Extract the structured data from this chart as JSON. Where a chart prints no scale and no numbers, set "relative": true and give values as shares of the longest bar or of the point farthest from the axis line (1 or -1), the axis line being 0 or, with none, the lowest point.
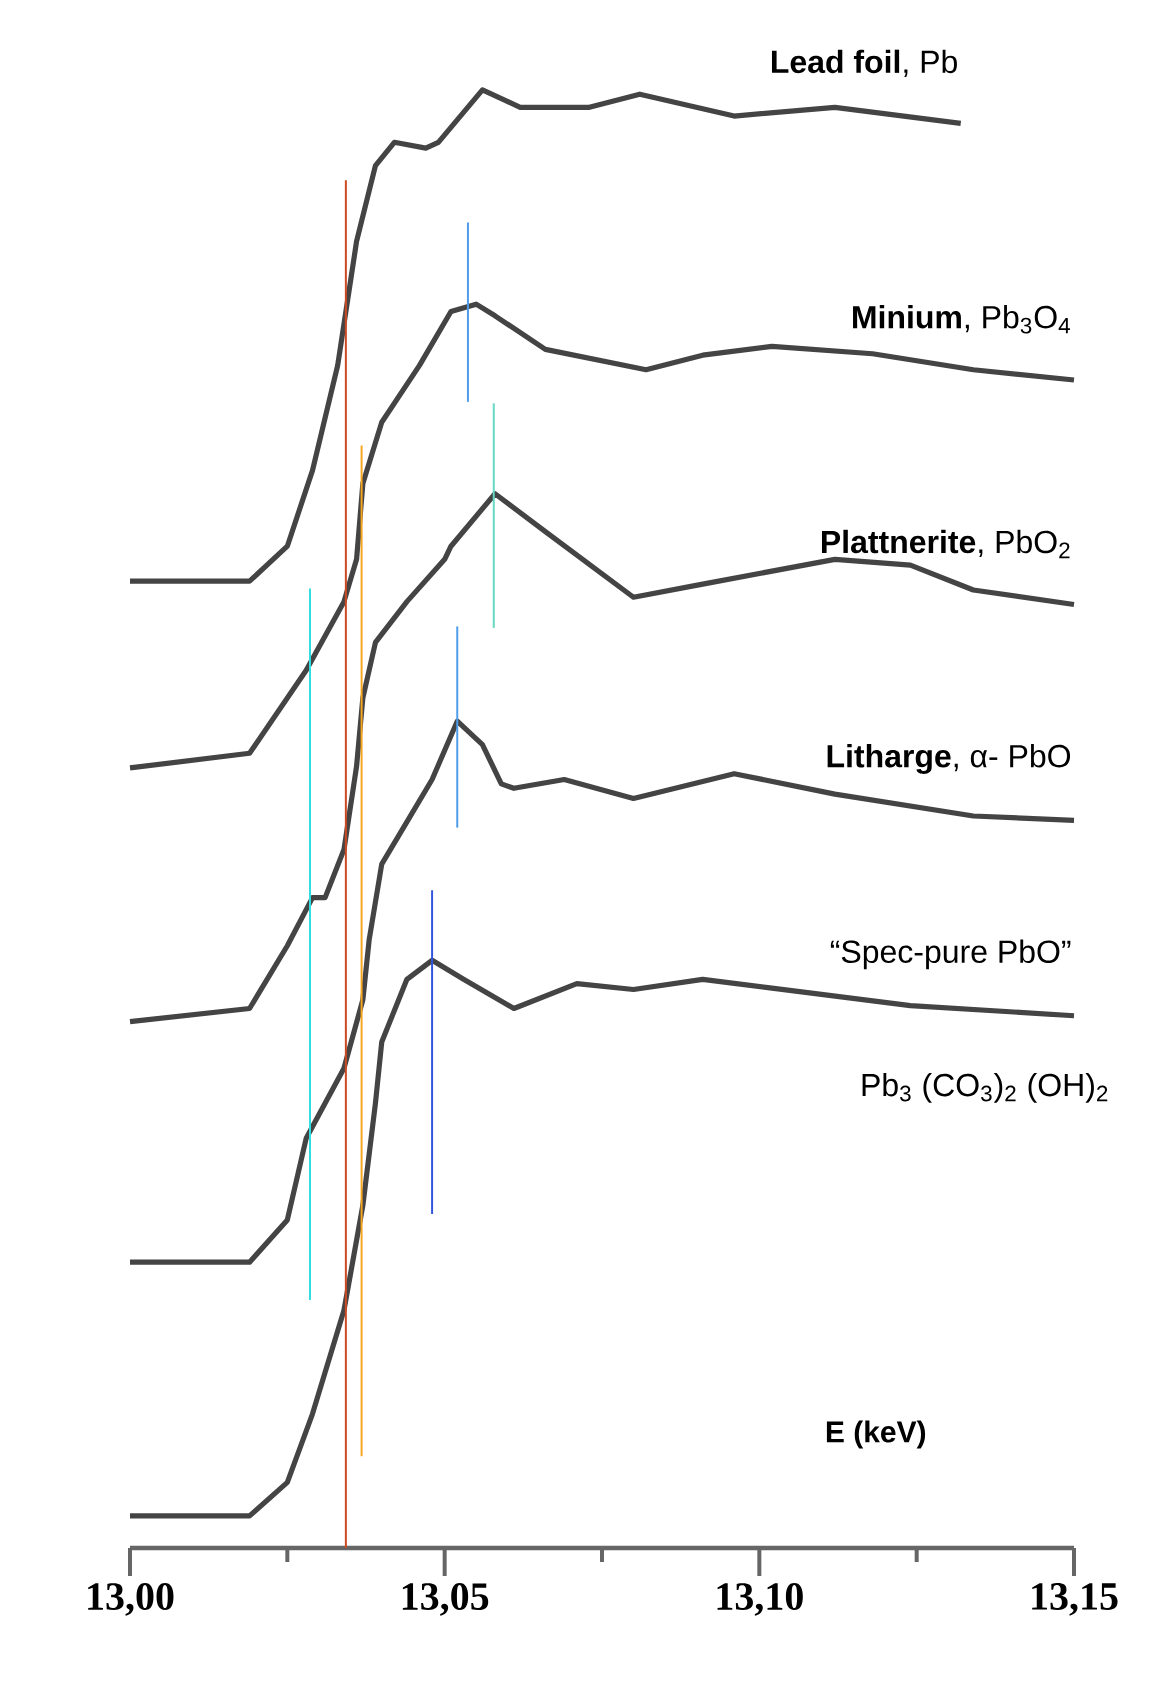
{
  "chart_data": {
    "type": "line",
    "relative": true,
    "xlabel": "E (keV)",
    "xlim": [
      13.0,
      13.15
    ],
    "xticks": [
      {
        "value": 13.0,
        "label": "13,00"
      },
      {
        "value": 13.025,
        "label": null
      },
      {
        "value": 13.05,
        "label": "13,05"
      },
      {
        "value": 13.075,
        "label": null
      },
      {
        "value": 13.1,
        "label": "13,10"
      },
      {
        "value": 13.125,
        "label": null
      },
      {
        "value": 13.15,
        "label": "13,15"
      }
    ],
    "annotations": [
      "Pb$_{3}$ (CO$_{3}$)$_{2}$ (OH)$_{2}$"
    ],
    "series": [
      {
        "name": "**Lead foil**, Pb",
        "color": "#444444",
        "x": [
          13.0,
          13.019,
          13.025,
          13.029,
          13.033,
          13.036,
          13.039,
          13.042,
          13.047,
          13.049,
          13.056,
          13.062,
          13.073,
          13.081,
          13.096,
          13.112,
          13.132
        ],
        "values": [
          0.663,
          0.663,
          0.687,
          0.739,
          0.811,
          0.896,
          0.948,
          0.964,
          0.96,
          0.964,
          1.0,
          0.988,
          0.988,
          0.997,
          0.982,
          0.988,
          0.977
        ]
      },
      {
        "name": "**Minium**, Pb$_{3}$O$_{4}$",
        "color": "#444444",
        "x": [
          13.0,
          13.019,
          13.028,
          13.034,
          13.036,
          13.037,
          13.04,
          13.046,
          13.051,
          13.055,
          13.058,
          13.066,
          13.082,
          13.091,
          13.102,
          13.118,
          13.134,
          13.15
        ],
        "values": [
          0.535,
          0.545,
          0.602,
          0.649,
          0.678,
          0.73,
          0.772,
          0.811,
          0.848,
          0.853,
          0.845,
          0.822,
          0.808,
          0.818,
          0.824,
          0.819,
          0.808,
          0.801
        ]
      },
      {
        "name": "**Plattnerite**, PbO$_{2}$",
        "color": "#444444",
        "x": [
          13.0,
          13.019,
          13.025,
          13.029,
          13.031,
          13.034,
          13.036,
          13.037,
          13.039,
          13.044,
          13.05,
          13.051,
          13.058,
          13.066,
          13.08,
          13.091,
          13.112,
          13.124,
          13.134,
          13.15
        ],
        "values": [
          0.361,
          0.37,
          0.413,
          0.446,
          0.446,
          0.479,
          0.536,
          0.583,
          0.621,
          0.649,
          0.678,
          0.687,
          0.723,
          0.697,
          0.652,
          0.661,
          0.678,
          0.674,
          0.657,
          0.647
        ]
      },
      {
        "name": "**Litharge**, α- PbO",
        "color": "#444444",
        "x": [
          13.0,
          13.019,
          13.025,
          13.028,
          13.034,
          13.037,
          13.038,
          13.04,
          13.044,
          13.048,
          13.052,
          13.056,
          13.059,
          13.061,
          13.069,
          13.08,
          13.096,
          13.112,
          13.134,
          13.15
        ],
        "values": [
          0.196,
          0.196,
          0.225,
          0.281,
          0.329,
          0.376,
          0.417,
          0.469,
          0.498,
          0.527,
          0.567,
          0.551,
          0.524,
          0.521,
          0.527,
          0.514,
          0.531,
          0.517,
          0.502,
          0.499
        ]
      },
      {
        "name": "“Spec-pure PbO”",
        "color": "#444444",
        "x": [
          13.0,
          13.019,
          13.025,
          13.029,
          13.034,
          13.037,
          13.039,
          13.04,
          13.044,
          13.048,
          13.053,
          13.061,
          13.071,
          13.08,
          13.091,
          13.102,
          13.124,
          13.15
        ],
        "values": [
          0.022,
          0.022,
          0.045,
          0.092,
          0.163,
          0.235,
          0.305,
          0.347,
          0.39,
          0.403,
          0.39,
          0.37,
          0.387,
          0.383,
          0.39,
          0.384,
          0.372,
          0.365
        ]
      },
      {
        "color": "#cc4a22",
        "x": [
          13.0343,
          13.0343
        ],
        "values": [
          0.938,
          0.0
        ]
      },
      {
        "color": "#4f9de8",
        "x": [
          13.0537,
          13.0537
        ],
        "values": [
          0.909,
          0.786
        ]
      },
      {
        "color": "#66d9c4",
        "x": [
          13.0578,
          13.0578
        ],
        "values": [
          0.785,
          0.631
        ]
      },
      {
        "color": "#33dde0",
        "x": [
          13.0286,
          13.0286
        ],
        "values": [
          0.658,
          0.17
        ]
      },
      {
        "color": "#f5a623",
        "x": [
          13.0368,
          13.0368
        ],
        "values": [
          0.756,
          0.063
        ]
      },
      {
        "color": "#4f9de8",
        "x": [
          13.052,
          13.052
        ],
        "values": [
          0.632,
          0.494
        ]
      },
      {
        "color": "#3355dd",
        "x": [
          13.048,
          13.048
        ],
        "values": [
          0.451,
          0.229
        ]
      }
    ]
  }
}
